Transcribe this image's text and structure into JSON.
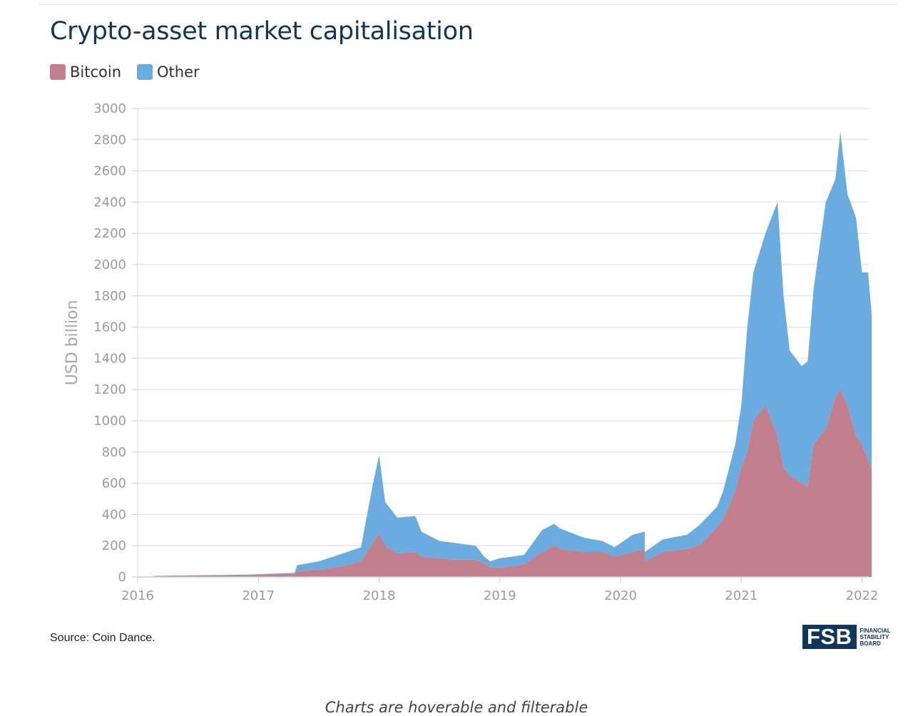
{
  "title": "Crypto-asset market capitalisation",
  "legend": [
    {
      "key": "bitcoin",
      "label": "Bitcoin",
      "color": "#c2808f"
    },
    {
      "key": "other",
      "label": "Other",
      "color": "#6aace0"
    }
  ],
  "source": "Source: Coin Dance.",
  "logo": {
    "mark": "FSB",
    "line1": "FINANCIAL",
    "line2": "STABILITY",
    "line3": "BOARD"
  },
  "footer_note": "Charts are hoverable and filterable",
  "chart_data": {
    "type": "area",
    "stacked": true,
    "ylabel": "USD billion",
    "xlabel": "",
    "ylim": [
      0,
      3000
    ],
    "yticks": [
      0,
      200,
      400,
      600,
      800,
      1000,
      1200,
      1400,
      1600,
      1800,
      2000,
      2200,
      2400,
      2600,
      2800,
      3000
    ],
    "xlim": [
      2016.0,
      2022.1
    ],
    "xticks": [
      2016,
      2017,
      2018,
      2019,
      2020,
      2021,
      2022
    ],
    "grid": true,
    "legend_position": "top-left",
    "x": [
      2016.13,
      2016.5,
      2016.9,
      2017.3,
      2017.32,
      2017.5,
      2017.7,
      2017.85,
      2017.95,
      2018.0,
      2018.05,
      2018.15,
      2018.3,
      2018.35,
      2018.5,
      2018.6,
      2018.8,
      2018.87,
      2018.92,
      2019.0,
      2019.2,
      2019.35,
      2019.45,
      2019.5,
      2019.7,
      2019.85,
      2019.95,
      2020.1,
      2020.2,
      2020.2,
      2020.35,
      2020.55,
      2020.65,
      2020.8,
      2020.85,
      2020.95,
      2021.0,
      2021.05,
      2021.1,
      2021.2,
      2021.3,
      2021.35,
      2021.4,
      2021.5,
      2021.55,
      2021.6,
      2021.7,
      2021.78,
      2021.82,
      2021.88,
      2021.95,
      2022.0,
      2022.05,
      2022.08
    ],
    "series": [
      {
        "name": "Bitcoin",
        "values": [
          6,
          9,
          12,
          20,
          35,
          45,
          70,
          100,
          220,
          280,
          200,
          150,
          160,
          130,
          120,
          110,
          110,
          85,
          60,
          60,
          80,
          160,
          200,
          180,
          160,
          160,
          130,
          160,
          180,
          100,
          160,
          180,
          200,
          320,
          370,
          550,
          700,
          800,
          1000,
          1100,
          900,
          700,
          650,
          600,
          580,
          850,
          950,
          1150,
          1200,
          1100,
          900,
          850,
          750,
          680
        ]
      },
      {
        "name": "Other",
        "values": [
          1,
          2,
          3,
          6,
          40,
          55,
          80,
          90,
          380,
          500,
          280,
          230,
          230,
          160,
          110,
          110,
          90,
          45,
          40,
          60,
          60,
          140,
          140,
          130,
          90,
          70,
          60,
          110,
          110,
          60,
          80,
          90,
          130,
          130,
          180,
          300,
          400,
          800,
          950,
          1100,
          1500,
          1100,
          800,
          750,
          800,
          1000,
          1450,
          1400,
          1650,
          1350,
          1400,
          1100,
          1200,
          1000
        ]
      }
    ]
  }
}
